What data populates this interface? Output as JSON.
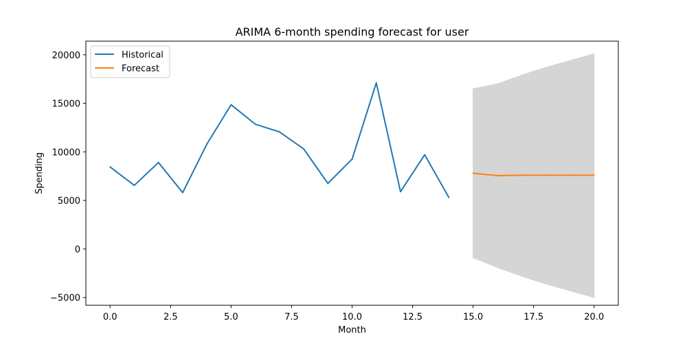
{
  "chart_data": {
    "type": "line",
    "title": "ARIMA 6-month spending forecast for user",
    "xlabel": "Month",
    "ylabel": "Spending",
    "xlim": [
      -1,
      21
    ],
    "ylim": [
      -5800,
      21400
    ],
    "xticks": [
      0.0,
      2.5,
      5.0,
      7.5,
      10.0,
      12.5,
      15.0,
      17.5,
      20.0
    ],
    "xtick_labels": [
      "0.0",
      "2.5",
      "5.0",
      "7.5",
      "10.0",
      "12.5",
      "15.0",
      "17.5",
      "20.0"
    ],
    "yticks": [
      -5000,
      0,
      5000,
      10000,
      15000,
      20000
    ],
    "ytick_labels": [
      "−5000",
      "0",
      "5000",
      "10000",
      "15000",
      "20000"
    ],
    "grid": false,
    "legend_position": "top-left",
    "series": [
      {
        "name": "Historical",
        "color": "#1f77b4",
        "x": [
          0,
          1,
          2,
          3,
          4,
          5,
          6,
          7,
          8,
          9,
          10,
          11,
          12,
          13,
          14
        ],
        "y": [
          8450,
          6550,
          8900,
          5800,
          10800,
          14850,
          12850,
          12050,
          10300,
          6750,
          9250,
          17100,
          5900,
          9700,
          5300
        ]
      },
      {
        "name": "Forecast",
        "color": "#ff7f0e",
        "x": [
          15,
          16,
          17,
          18,
          19,
          20
        ],
        "y": [
          7800,
          7550,
          7600,
          7600,
          7600,
          7600
        ]
      }
    ],
    "confidence_band": {
      "color": "#d3d3d3",
      "x": [
        15,
        16,
        17,
        18,
        19,
        20
      ],
      "upper": [
        16500,
        17000,
        17900,
        18700,
        19400,
        20100
      ],
      "lower": [
        -900,
        -1900,
        -2800,
        -3600,
        -4300,
        -5000
      ]
    }
  }
}
